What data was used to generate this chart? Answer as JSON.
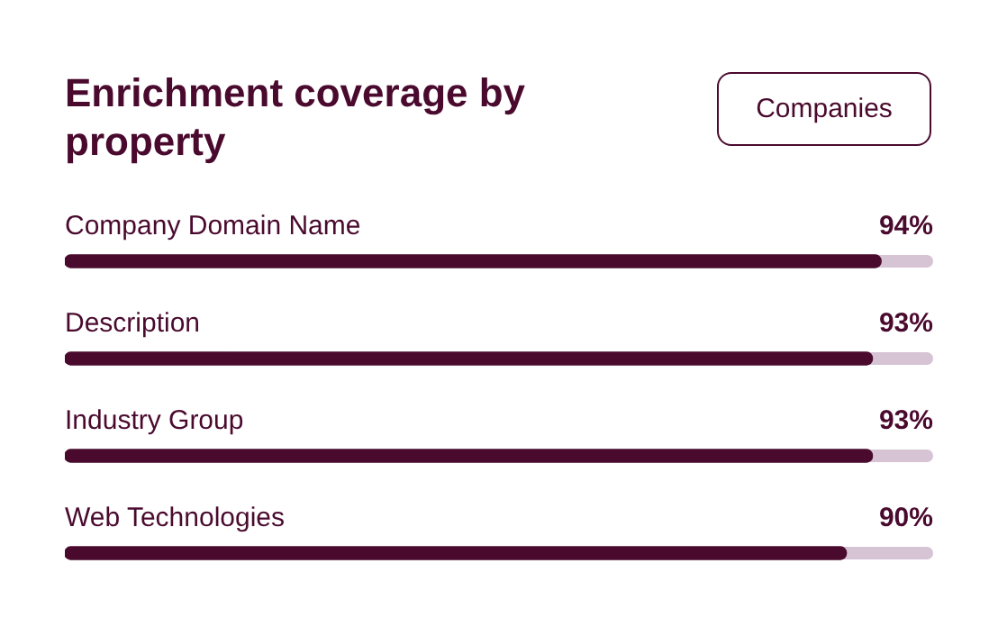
{
  "chart_data": {
    "type": "bar",
    "orientation": "horizontal",
    "title": "Enrichment coverage by property",
    "annotations": [
      "Companies"
    ],
    "categories": [
      "Company Domain Name",
      "Description",
      "Industry Group",
      "Web Technologies"
    ],
    "values": [
      94,
      93,
      93,
      90
    ],
    "value_labels": [
      "94%",
      "93%",
      "93%",
      "90%"
    ],
    "color": "#4a0a2e",
    "xlim": [
      0,
      100
    ],
    "tick_labels": false,
    "grid": false,
    "legend": false
  }
}
